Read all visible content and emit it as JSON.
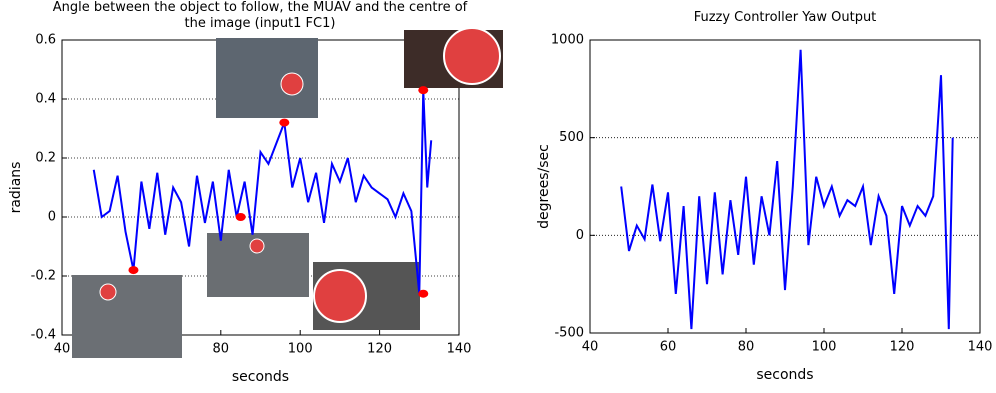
{
  "chart_data": [
    {
      "type": "line",
      "title": "Angle between the object to follow, the MUAV and the centre of the image (input1 FC1)",
      "x_label": "seconds",
      "y_label": "radians",
      "xlim": [
        40,
        140
      ],
      "xticks": [
        40,
        60,
        80,
        100,
        120,
        140
      ],
      "ylim": [
        -0.4,
        0.6
      ],
      "yticks": [
        -0.4,
        -0.2,
        0,
        0.2,
        0.4,
        0.6
      ],
      "grid": true,
      "series": [
        {
          "color": "#0000ff",
          "x": [
            48,
            50,
            52,
            54,
            56,
            58,
            60,
            62,
            64,
            66,
            68,
            70,
            72,
            74,
            76,
            78,
            80,
            82,
            84,
            86,
            88,
            90,
            92,
            94,
            96,
            98,
            100,
            102,
            104,
            106,
            108,
            110,
            112,
            114,
            116,
            118,
            120,
            122,
            124,
            126,
            128,
            130,
            131,
            132,
            133
          ],
          "values": [
            0.16,
            0.0,
            0.02,
            0.14,
            -0.05,
            -0.18,
            0.12,
            -0.04,
            0.15,
            -0.06,
            0.1,
            0.05,
            -0.1,
            0.14,
            -0.02,
            0.12,
            -0.08,
            0.16,
            0.0,
            0.12,
            -0.06,
            0.22,
            0.18,
            0.25,
            0.32,
            0.1,
            0.2,
            0.05,
            0.15,
            -0.02,
            0.18,
            0.12,
            0.2,
            0.05,
            0.14,
            0.1,
            0.08,
            0.06,
            0.0,
            0.08,
            0.02,
            -0.26,
            0.43,
            0.1,
            0.26
          ]
        }
      ],
      "markers": {
        "color": "#ff0000",
        "x": [
          58,
          85,
          96,
          131,
          131
        ],
        "values": [
          -0.18,
          0,
          0.32,
          0.43,
          -0.26
        ]
      }
    },
    {
      "type": "line",
      "title": "Fuzzy Controller Yaw Output",
      "x_label": "seconds",
      "y_label": "degrees/sec",
      "xlim": [
        40,
        140
      ],
      "xticks": [
        40,
        60,
        80,
        100,
        120,
        140
      ],
      "ylim": [
        -500,
        1000
      ],
      "yticks": [
        -500,
        0,
        500,
        1000
      ],
      "grid": true,
      "series": [
        {
          "color": "#0000ff",
          "x": [
            48,
            50,
            52,
            54,
            56,
            58,
            60,
            62,
            64,
            66,
            68,
            70,
            72,
            74,
            76,
            78,
            80,
            82,
            84,
            86,
            88,
            90,
            92,
            94,
            96,
            98,
            100,
            102,
            104,
            106,
            108,
            110,
            112,
            114,
            116,
            118,
            120,
            122,
            124,
            126,
            128,
            130,
            132,
            133
          ],
          "values": [
            250,
            -80,
            50,
            -20,
            260,
            -30,
            220,
            -300,
            150,
            -480,
            200,
            -250,
            220,
            -200,
            180,
            -100,
            300,
            -150,
            200,
            0,
            380,
            -280,
            250,
            950,
            -50,
            300,
            150,
            250,
            100,
            180,
            150,
            250,
            -50,
            200,
            100,
            -300,
            150,
            50,
            150,
            100,
            200,
            820,
            -480,
            500
          ]
        }
      ]
    }
  ]
}
